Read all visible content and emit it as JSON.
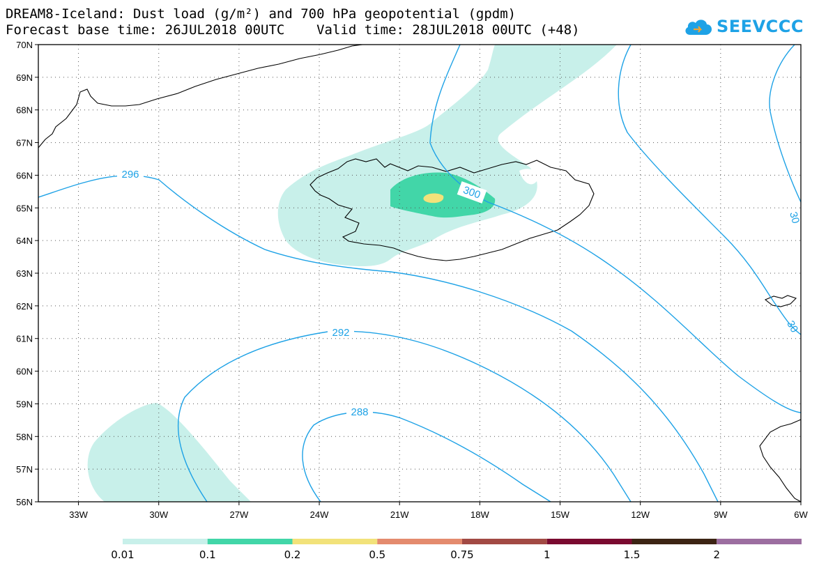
{
  "header": {
    "title_line1": "DREAM8-Iceland: Dust load (g/m²) and 700 hPa geopotential (gpdm)",
    "title_line2": "Forecast base time: 26JUL2018 00UTC    Valid time: 28JUL2018 00UTC (+48)"
  },
  "logo": {
    "text": "SEEVCCC",
    "icon": "cloud-icon",
    "color": "#1ea2e6"
  },
  "map": {
    "lon_range": [
      -34.5,
      -6
    ],
    "lat_range": [
      56,
      70
    ],
    "lon_ticks": [
      "33W",
      "30W",
      "27W",
      "24W",
      "21W",
      "18W",
      "15W",
      "12W",
      "9W",
      "6W"
    ],
    "lat_ticks": [
      "56N",
      "57N",
      "58N",
      "59N",
      "60N",
      "61N",
      "62N",
      "63N",
      "64N",
      "65N",
      "66N",
      "67N",
      "68N",
      "69N",
      "70N"
    ],
    "grid": "dotted",
    "contour_labels": [
      "296",
      "300",
      "292",
      "288",
      "30",
      "30"
    ],
    "contour_color": "#1ea2e6"
  },
  "legend": {
    "levels": [
      "0.01",
      "0.1",
      "0.2",
      "0.5",
      "0.75",
      "1",
      "1.5",
      "2"
    ],
    "colors": [
      "#c8f0ea",
      "#42d6a8",
      "#f2e27a",
      "#e48b6e",
      "#a24a44",
      "#7a0a30",
      "#3c2414",
      "#9c6ea0"
    ]
  }
}
